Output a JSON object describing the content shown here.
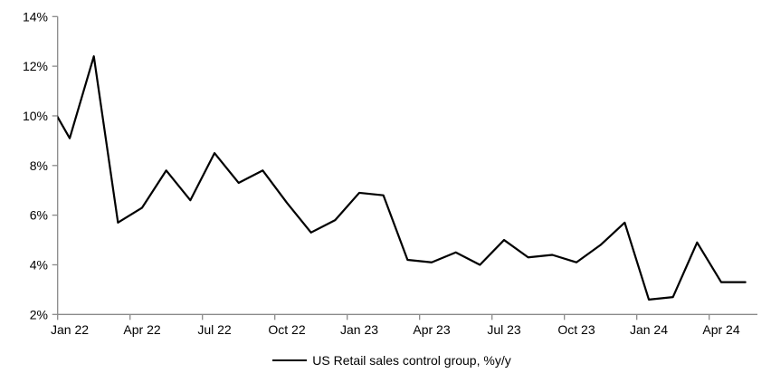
{
  "chart_data": {
    "type": "line",
    "title": "",
    "xlabel": "",
    "ylabel": "",
    "grid": false,
    "legend_position": "bottom",
    "line_color": "#000000",
    "axis_color": "#8a8a8a",
    "ylim": [
      2,
      14
    ],
    "categories": [
      "Jan 22",
      "Feb 22",
      "Mar 22",
      "Apr 22",
      "May 22",
      "Jun 22",
      "Jul 22",
      "Aug 22",
      "Sep 22",
      "Oct 22",
      "Nov 22",
      "Dec 22",
      "Jan 23",
      "Feb 23",
      "Mar 23",
      "Apr 23",
      "May 23",
      "Jun 23",
      "Jul 23",
      "Aug 23",
      "Sep 23",
      "Oct 23",
      "Nov 23",
      "Dec 23",
      "Jan 24",
      "Feb 24",
      "Mar 24",
      "Apr 24",
      "May 24"
    ],
    "series": [
      {
        "name": "US Retail sales control group, %y/y",
        "values": [
          9.1,
          12.4,
          5.7,
          6.3,
          7.8,
          6.6,
          8.5,
          7.3,
          7.8,
          6.5,
          5.3,
          5.8,
          6.9,
          6.8,
          4.2,
          4.1,
          4.5,
          4.0,
          5.0,
          4.3,
          4.4,
          4.1,
          4.8,
          5.7,
          2.6,
          2.7,
          4.9,
          3.3,
          3.3
        ]
      }
    ],
    "leadin_point": {
      "category": "Dec 21",
      "value": 10.8
    },
    "y_ticks": {
      "values": [
        2,
        4,
        6,
        8,
        10,
        12,
        14
      ],
      "labels": [
        "2%",
        "4%",
        "6%",
        "8%",
        "10%",
        "12%",
        "14%"
      ]
    },
    "x_ticks": {
      "category_indices": [
        0,
        3,
        6,
        9,
        12,
        15,
        18,
        21,
        24,
        27
      ],
      "labels": [
        "Jan 22",
        "Apr 22",
        "Jul 22",
        "Oct 22",
        "Jan 23",
        "Apr 23",
        "Jul 23",
        "Oct 23",
        "Jan 24",
        "Apr 24"
      ]
    }
  }
}
